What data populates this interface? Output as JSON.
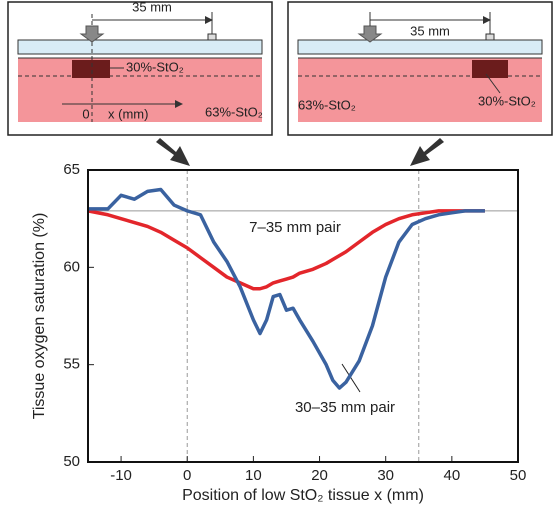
{
  "insets": {
    "left": {
      "distance": "35 mm",
      "inclusion": "30%-StO₂",
      "background": "63%-StO₂",
      "origin": "0",
      "axis": "x (mm)"
    },
    "right": {
      "distance": "35 mm",
      "inclusion": "30%-StO₂",
      "background": "63%-StO₂"
    }
  },
  "chart_data": {
    "type": "line",
    "xlabel": "Position of low StO₂ tissue x (mm)",
    "ylabel": "Tissue oxygen saturation (%)",
    "x": [
      -15,
      -12,
      -10,
      -8,
      -6,
      -4,
      -2,
      0,
      2,
      4,
      6,
      8,
      10,
      11,
      12,
      13,
      14,
      15,
      16,
      17,
      19,
      21,
      22,
      23,
      24,
      26,
      28,
      30,
      32,
      34,
      36,
      38,
      40,
      42,
      45
    ],
    "series": [
      {
        "name": "7–35 mm pair",
        "color": "#e3262b",
        "values": [
          62.9,
          62.7,
          62.5,
          62.3,
          62.1,
          61.8,
          61.4,
          61.0,
          60.5,
          60.0,
          59.5,
          59.2,
          58.9,
          58.9,
          59.0,
          59.2,
          59.3,
          59.4,
          59.5,
          59.7,
          59.9,
          60.2,
          60.4,
          60.6,
          60.8,
          61.3,
          61.8,
          62.2,
          62.5,
          62.7,
          62.8,
          62.9,
          62.9,
          62.9,
          62.9
        ]
      },
      {
        "name": "30–35 mm pair",
        "color": "#3a62a0",
        "values": [
          63.0,
          63.0,
          63.7,
          63.5,
          63.9,
          64.0,
          63.2,
          62.9,
          62.7,
          61.3,
          60.3,
          59.0,
          57.3,
          56.6,
          57.3,
          58.5,
          58.6,
          57.8,
          57.9,
          57.3,
          56.2,
          55.0,
          54.2,
          53.8,
          54.1,
          55.2,
          57.0,
          59.5,
          61.3,
          62.2,
          62.5,
          62.7,
          62.8,
          62.9,
          62.9
        ]
      }
    ],
    "xlim": [
      -15,
      50
    ],
    "xticks": [
      -10,
      0,
      10,
      20,
      30,
      40,
      50
    ],
    "ylim": [
      50,
      65
    ],
    "yticks": [
      50,
      55,
      60,
      65
    ],
    "reference_line": 62.9,
    "vlines": [
      0,
      35
    ]
  }
}
